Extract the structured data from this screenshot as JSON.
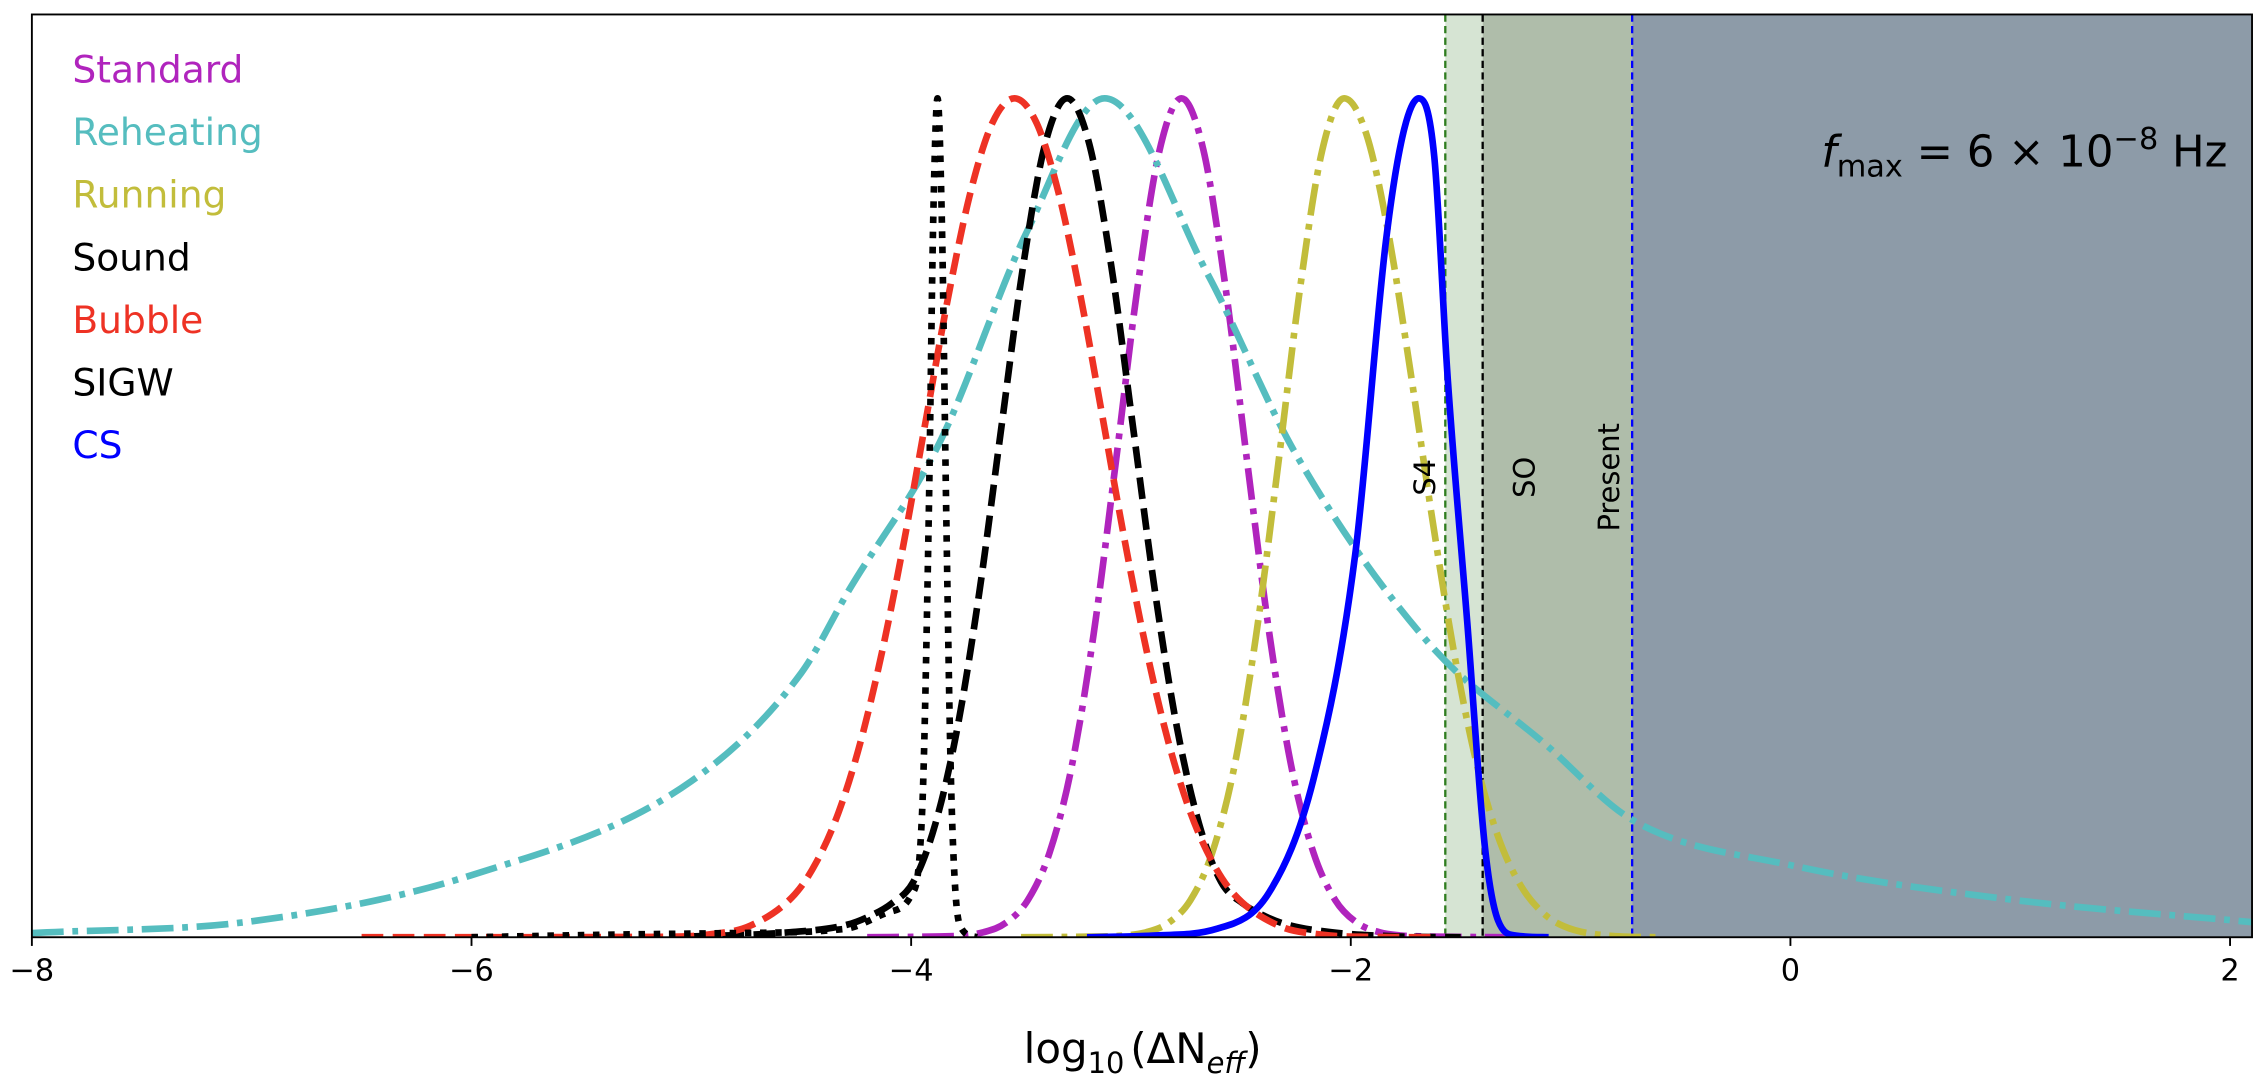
{
  "chart_data": {
    "type": "line",
    "xlabel": {
      "base": "log",
      "base_sub": "10",
      "open": "(ΔN",
      "sub": "eff",
      "close": ")"
    },
    "ylabel": "",
    "xlim": [
      -8,
      2.1
    ],
    "ylim": [
      0,
      1.1
    ],
    "x_ticks": [
      -8,
      -6,
      -4,
      -2,
      0,
      2
    ],
    "x_tick_labels": [
      "−8",
      "−6",
      "−4",
      "−2",
      "0",
      "2"
    ],
    "y_ticks": [],
    "grid": false,
    "legend_placement": "top-left",
    "annotation": {
      "f": "f",
      "sub": "max",
      "rest": " = 6 × 10",
      "sup": "−8",
      "unit": " Hz"
    },
    "bands": [
      {
        "label": "S4",
        "x_from": -1.57,
        "x_to": -1.4,
        "fill": "#d6e4d3",
        "line_color": "#2f7d1f"
      },
      {
        "label": "SO",
        "x_from": -1.4,
        "x_to": -0.72,
        "fill": "#afbdaa",
        "line_color": "#000000"
      },
      {
        "label": "Present",
        "x_from": -0.72,
        "x_to": 2.1,
        "fill": "#8d9ba8",
        "line_color": "#0000ff"
      }
    ],
    "series": [
      {
        "name": "Standard",
        "color": "#b024bd",
        "style": "dashdot",
        "points": [
          [
            -4.2,
            0
          ],
          [
            -3.87,
            0.001
          ],
          [
            -3.77,
            0.002
          ],
          [
            -3.67,
            0.006
          ],
          [
            -3.57,
            0.017
          ],
          [
            -3.47,
            0.044
          ],
          [
            -3.37,
            0.101
          ],
          [
            -3.27,
            0.203
          ],
          [
            -3.17,
            0.361
          ],
          [
            -3.07,
            0.564
          ],
          [
            -2.97,
            0.775
          ],
          [
            -2.87,
            0.938
          ],
          [
            -2.77,
            1
          ],
          [
            -2.67,
            0.938
          ],
          [
            -2.57,
            0.775
          ],
          [
            -2.47,
            0.564
          ],
          [
            -2.37,
            0.361
          ],
          [
            -2.27,
            0.203
          ],
          [
            -2.17,
            0.101
          ],
          [
            -2.07,
            0.044
          ],
          [
            -1.97,
            0.017
          ],
          [
            -1.87,
            0.006
          ],
          [
            -1.77,
            0.002
          ],
          [
            -1.67,
            0.001
          ],
          [
            -1.3,
            0
          ]
        ]
      },
      {
        "name": "Reheating",
        "color": "#55bdbf",
        "style": "dashdot",
        "points": [
          [
            -8,
            0.005
          ],
          [
            -7,
            0.019
          ],
          [
            -6,
            0.074
          ],
          [
            -5,
            0.186
          ],
          [
            -4.5,
            0.315
          ],
          [
            -4.28,
            0.415
          ],
          [
            -3.87,
            0.59
          ],
          [
            -3.47,
            0.843
          ],
          [
            -3.12,
            1
          ],
          [
            -2.65,
            0.79
          ],
          [
            -2.25,
            0.576
          ],
          [
            -1.64,
            0.349
          ],
          [
            -1.11,
            0.229
          ],
          [
            -0.72,
            0.14
          ],
          [
            0,
            0.086
          ],
          [
            1,
            0.045
          ],
          [
            2.1,
            0.018
          ]
        ]
      },
      {
        "name": "Running",
        "color": "#c2bd3b",
        "style": "dashdot",
        "points": [
          [
            -3.5,
            0
          ],
          [
            -3.13,
            0.001
          ],
          [
            -3.03,
            0.002
          ],
          [
            -2.93,
            0.006
          ],
          [
            -2.83,
            0.017
          ],
          [
            -2.73,
            0.044
          ],
          [
            -2.63,
            0.101
          ],
          [
            -2.53,
            0.203
          ],
          [
            -2.43,
            0.361
          ],
          [
            -2.33,
            0.564
          ],
          [
            -2.23,
            0.775
          ],
          [
            -2.13,
            0.938
          ],
          [
            -2.03,
            1
          ],
          [
            -1.93,
            0.958
          ],
          [
            -1.83,
            0.841
          ],
          [
            -1.73,
            0.677
          ],
          [
            -1.63,
            0.5
          ],
          [
            -1.53,
            0.339
          ],
          [
            -1.43,
            0.21
          ],
          [
            -1.33,
            0.12
          ],
          [
            -1.23,
            0.063
          ],
          [
            -1.13,
            0.03
          ],
          [
            -1.03,
            0.013
          ],
          [
            -0.83,
            0.002
          ],
          [
            -0.6,
            0
          ]
        ]
      },
      {
        "name": "Sound",
        "color": "#000000",
        "style": "dashed",
        "points": [
          [
            -5.0,
            0.001
          ],
          [
            -4.6,
            0.005
          ],
          [
            -4.29,
            0.015
          ],
          [
            -4.19,
            0.025
          ],
          [
            -4.09,
            0.04
          ],
          [
            -3.99,
            0.066
          ],
          [
            -3.89,
            0.135
          ],
          [
            -3.79,
            0.249
          ],
          [
            -3.69,
            0.411
          ],
          [
            -3.59,
            0.607
          ],
          [
            -3.49,
            0.801
          ],
          [
            -3.39,
            0.946
          ],
          [
            -3.29,
            1
          ],
          [
            -3.19,
            0.946
          ],
          [
            -3.09,
            0.801
          ],
          [
            -2.99,
            0.607
          ],
          [
            -2.89,
            0.411
          ],
          [
            -2.79,
            0.249
          ],
          [
            -2.69,
            0.135
          ],
          [
            -2.59,
            0.066
          ],
          [
            -2.49,
            0.04
          ],
          [
            -2.39,
            0.025
          ],
          [
            -2.29,
            0.015
          ],
          [
            -2.09,
            0.006
          ],
          [
            -1.79,
            0.001
          ],
          [
            -1.5,
            0
          ]
        ]
      },
      {
        "name": "Bubble",
        "color": "#ee3224",
        "style": "dashed",
        "points": [
          [
            -6.5,
            0
          ],
          [
            -5.13,
            0.0005
          ],
          [
            -4.93,
            0.003
          ],
          [
            -4.73,
            0.014
          ],
          [
            -4.53,
            0.051
          ],
          [
            -4.43,
            0.09
          ],
          [
            -4.33,
            0.149
          ],
          [
            -4.23,
            0.233
          ],
          [
            -4.13,
            0.343
          ],
          [
            -4.03,
            0.475
          ],
          [
            -3.93,
            0.621
          ],
          [
            -3.83,
            0.765
          ],
          [
            -3.73,
            0.888
          ],
          [
            -3.63,
            0.971
          ],
          [
            -3.53,
            1
          ],
          [
            -3.43,
            0.971
          ],
          [
            -3.33,
            0.888
          ],
          [
            -3.23,
            0.765
          ],
          [
            -3.13,
            0.621
          ],
          [
            -3.03,
            0.475
          ],
          [
            -2.93,
            0.343
          ],
          [
            -2.83,
            0.233
          ],
          [
            -2.73,
            0.149
          ],
          [
            -2.63,
            0.09
          ],
          [
            -2.53,
            0.051
          ],
          [
            -2.33,
            0.014
          ],
          [
            -2.13,
            0.003
          ],
          [
            -1.93,
            0.0005
          ],
          [
            -1.6,
            0
          ]
        ]
      },
      {
        "name": "SIGW",
        "color": "#000000",
        "style": "dotted",
        "points": [
          [
            -6,
            0
          ],
          [
            -5.4,
            0.003
          ],
          [
            -4.8,
            0.005
          ],
          [
            -4.3,
            0.01
          ],
          [
            -4.1,
            0.03
          ],
          [
            -4.0,
            0.05
          ],
          [
            -3.95,
            0.15
          ],
          [
            -3.92,
            0.5
          ],
          [
            -3.9,
            0.85
          ],
          [
            -3.88,
            1
          ],
          [
            -3.86,
            0.85
          ],
          [
            -3.84,
            0.5
          ],
          [
            -3.82,
            0.2
          ],
          [
            -3.8,
            0.06
          ],
          [
            -3.77,
            0.01
          ],
          [
            -3.7,
            0
          ]
        ]
      },
      {
        "name": "CS",
        "color": "#0000ff",
        "style": "solid",
        "points": [
          [
            -3.2,
            0
          ],
          [
            -2.9,
            0.002
          ],
          [
            -2.61,
            0.01
          ],
          [
            -2.37,
            0.054
          ],
          [
            -2.17,
            0.188
          ],
          [
            -1.98,
            0.456
          ],
          [
            -1.84,
            0.83
          ],
          [
            -1.76,
            0.96
          ],
          [
            -1.69,
            1
          ],
          [
            -1.62,
            0.93
          ],
          [
            -1.56,
            0.67
          ],
          [
            -1.47,
            0.375
          ],
          [
            -1.39,
            0.108
          ],
          [
            -1.33,
            0.02
          ],
          [
            -1.25,
            0.002
          ],
          [
            -1.1,
            0
          ]
        ]
      }
    ]
  }
}
